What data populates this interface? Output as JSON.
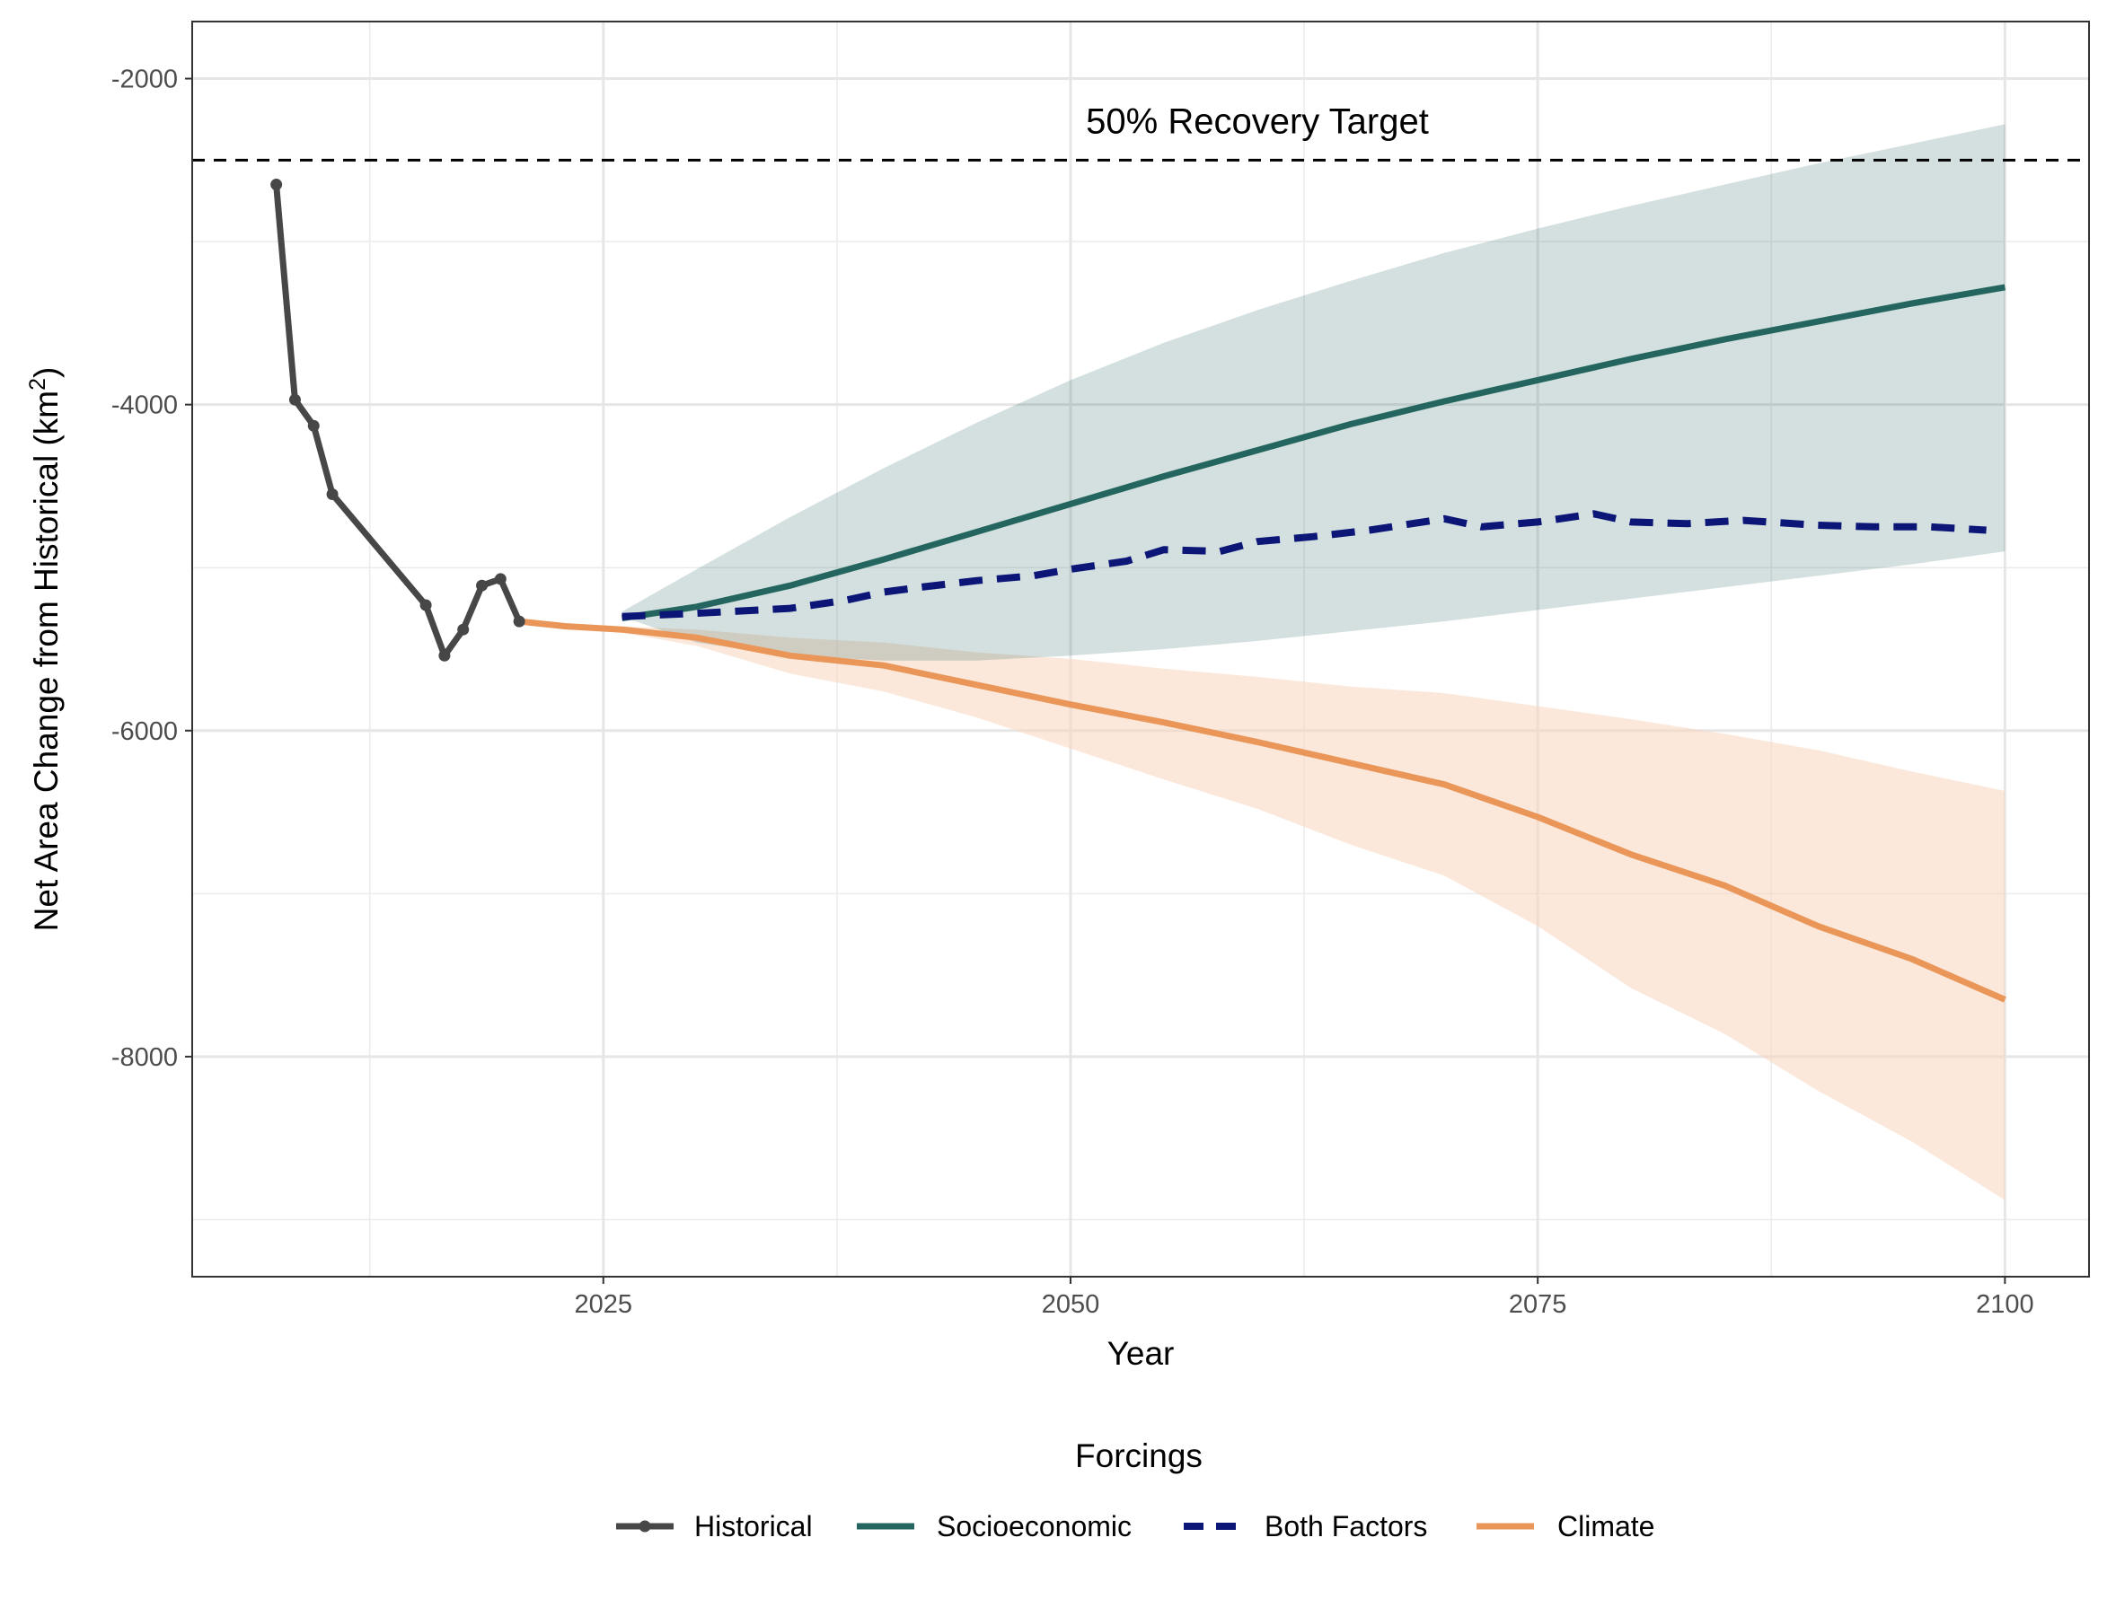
{
  "chart_data": {
    "type": "line",
    "title": "",
    "xlabel": "Year",
    "ylabel": "Net Area Change from Historical (km",
    "ylabel_superscript": "2",
    "ylabel_close": ")",
    "xlim": [
      2003,
      2104.5
    ],
    "ylim": [
      -9350,
      -1650
    ],
    "x_ticks": [
      2025,
      2050,
      2075,
      2100
    ],
    "y_ticks": [
      -2000,
      -4000,
      -6000,
      -8000
    ],
    "grid": true,
    "reference_line": {
      "y": -2500,
      "label": "50% Recovery Target",
      "style": "dashed"
    },
    "legend": {
      "title": "Forcings",
      "position": "bottom",
      "entries": [
        "Historical",
        "Socioeconomic",
        "Both Factors",
        "Climate"
      ]
    },
    "series": [
      {
        "name": "Historical",
        "color": "#474747",
        "style": "solid-with-points",
        "x": [
          2007.5,
          2008.5,
          2009.5,
          2010.5,
          2015.5,
          2016.5,
          2017.5,
          2018.5,
          2019.5,
          2020.5
        ],
        "y": [
          -2650,
          -3970,
          -4130,
          -4550,
          -5230,
          -5540,
          -5380,
          -5110,
          -5070,
          -5330
        ]
      },
      {
        "name": "Socioeconomic",
        "color": "#24665f",
        "style": "solid",
        "band_color": "#24665f",
        "x": [
          2026,
          2030,
          2035,
          2040,
          2045,
          2050,
          2055,
          2060,
          2065,
          2070,
          2075,
          2080,
          2085,
          2090,
          2095,
          2100
        ],
        "y": [
          -5310,
          -5240,
          -5110,
          -4950,
          -4780,
          -4610,
          -4440,
          -4280,
          -4120,
          -3980,
          -3850,
          -3720,
          -3600,
          -3490,
          -3380,
          -3280
        ],
        "band_lower": [
          -5300,
          -5460,
          -5540,
          -5570,
          -5570,
          -5540,
          -5500,
          -5450,
          -5390,
          -5330,
          -5260,
          -5190,
          -5120,
          -5050,
          -4980,
          -4900
        ],
        "band_upper": [
          -5270,
          -5010,
          -4690,
          -4390,
          -4110,
          -3850,
          -3620,
          -3420,
          -3240,
          -3070,
          -2920,
          -2780,
          -2650,
          -2520,
          -2400,
          -2280
        ]
      },
      {
        "name": "Both Factors",
        "color": "#0b1677",
        "style": "dashed",
        "x": [
          2026,
          2030,
          2035,
          2038,
          2040,
          2042,
          2045,
          2048,
          2050,
          2053,
          2055,
          2058,
          2060,
          2063,
          2066,
          2070,
          2072,
          2075,
          2078,
          2080,
          2083,
          2086,
          2090,
          2093,
          2096,
          2099
        ],
        "y": [
          -5300,
          -5280,
          -5250,
          -5200,
          -5150,
          -5120,
          -5080,
          -5050,
          -5010,
          -4960,
          -4890,
          -4900,
          -4840,
          -4810,
          -4770,
          -4700,
          -4750,
          -4720,
          -4670,
          -4720,
          -4730,
          -4710,
          -4740,
          -4750,
          -4750,
          -4770
        ]
      },
      {
        "name": "Climate",
        "color": "#e99658",
        "style": "solid",
        "band_color": "#f8d5bd",
        "x": [
          2020.5,
          2023,
          2026,
          2030,
          2035,
          2040,
          2045,
          2050,
          2055,
          2060,
          2065,
          2070,
          2075,
          2080,
          2085,
          2090,
          2095,
          2100
        ],
        "y": [
          -5330,
          -5360,
          -5380,
          -5430,
          -5540,
          -5600,
          -5720,
          -5840,
          -5950,
          -6070,
          -6200,
          -6330,
          -6530,
          -6760,
          -6950,
          -7200,
          -7400,
          -7650
        ],
        "band_lower": [
          -5340,
          -5370,
          -5400,
          -5480,
          -5650,
          -5760,
          -5920,
          -6110,
          -6300,
          -6480,
          -6700,
          -6890,
          -7200,
          -7580,
          -7860,
          -8210,
          -8520,
          -8880
        ],
        "band_upper": [
          -5320,
          -5340,
          -5360,
          -5380,
          -5430,
          -5460,
          -5520,
          -5560,
          -5620,
          -5670,
          -5730,
          -5770,
          -5850,
          -5930,
          -6020,
          -6120,
          -6250,
          -6370
        ]
      }
    ]
  }
}
